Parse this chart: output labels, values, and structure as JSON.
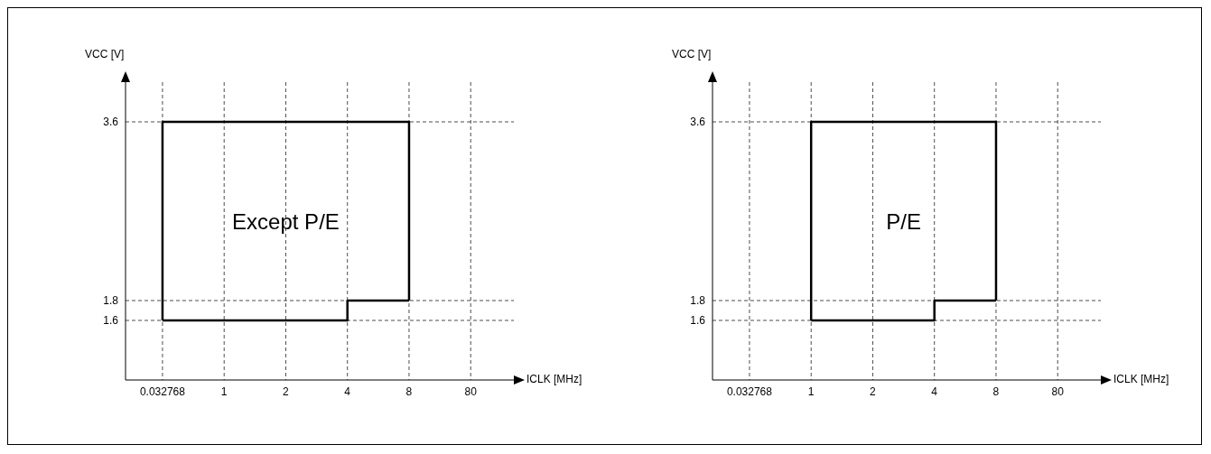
{
  "chart_data": [
    {
      "type": "line",
      "xlabel": "ICLK [MHz]",
      "ylabel": "VCC [V]",
      "categories": [
        "0.032768",
        "1",
        "2",
        "4",
        "8",
        "80"
      ],
      "series": [
        {
          "color": "#000000",
          "x": [
            "0.032768",
            "0.032768",
            "8",
            "8"
          ],
          "values": [
            1.6,
            3.6,
            3.6,
            1.8
          ]
        },
        {
          "color": "#000000",
          "x": [
            "0.032768",
            "4",
            "4",
            "8"
          ],
          "values": [
            1.6,
            1.6,
            1.8,
            1.8
          ]
        }
      ],
      "ylim": [
        1,
        4
      ],
      "yticks": [
        1.6,
        1.8,
        3.6
      ],
      "grid": true,
      "marker": "none",
      "line_style": "solid",
      "annotations": [
        "Except P/E"
      ]
    },
    {
      "type": "line",
      "xlabel": "ICLK [MHz]",
      "ylabel": "VCC [V]",
      "categories": [
        "0.032768",
        "1",
        "2",
        "4",
        "8",
        "80"
      ],
      "series": [
        {
          "color": "#000000",
          "x": [
            "1",
            "1",
            "8",
            "8"
          ],
          "values": [
            1.6,
            3.6,
            3.6,
            1.8
          ]
        },
        {
          "color": "#000000",
          "x": [
            "1",
            "4",
            "4",
            "8"
          ],
          "values": [
            1.6,
            1.6,
            1.8,
            1.8
          ]
        }
      ],
      "ylim": [
        1,
        4
      ],
      "yticks": [
        1.6,
        1.8,
        3.6
      ],
      "grid": true,
      "marker": "none",
      "line_style": "solid",
      "annotations": [
        "P/E"
      ]
    }
  ]
}
